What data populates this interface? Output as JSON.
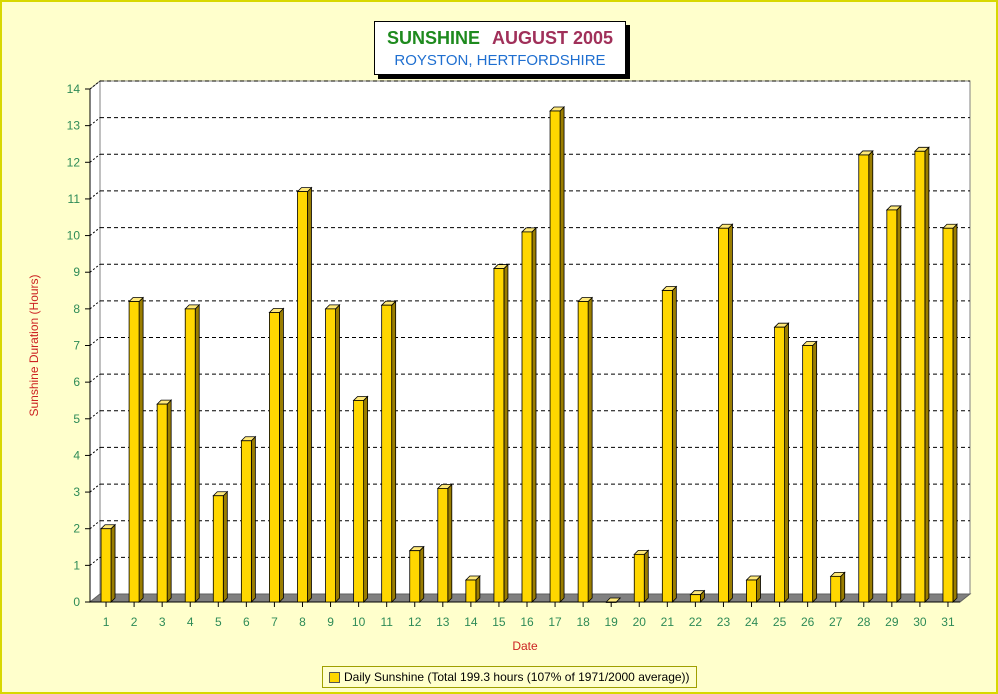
{
  "title": {
    "part1": "SUNSHINE",
    "part2": "AUGUST 2005",
    "subtitle": "ROYSTON, HERTFORDSHIRE"
  },
  "colors": {
    "bar": "#ffd700",
    "bar_side": "#9a7d00",
    "bar_top": "#ffe97a",
    "axis_text": "#2e8b57",
    "label_text": "#cc2222",
    "title_green": "#1e8a1e",
    "title_maroon": "#a0305a",
    "subtitle_blue": "#1f6fd0"
  },
  "legend": {
    "label": "Daily Sunshine (Total 199.3 hours (107% of 1971/2000 average))"
  },
  "chart_data": {
    "type": "bar",
    "xlabel": "Date",
    "ylabel": "Sunshine Duration (Hours)",
    "ylim": [
      0,
      14
    ],
    "yticks": [
      0,
      1,
      2,
      3,
      4,
      5,
      6,
      7,
      8,
      9,
      10,
      11,
      12,
      13,
      14
    ],
    "grid": true,
    "legend_position": "bottom",
    "categories": [
      "1",
      "2",
      "3",
      "4",
      "5",
      "6",
      "7",
      "8",
      "9",
      "10",
      "11",
      "12",
      "13",
      "14",
      "15",
      "16",
      "17",
      "18",
      "19",
      "20",
      "21",
      "22",
      "23",
      "24",
      "25",
      "26",
      "27",
      "28",
      "29",
      "30",
      "31"
    ],
    "series": [
      {
        "name": "Daily Sunshine (Total 199.3 hours (107% of 1971/2000 average))",
        "values": [
          2.0,
          8.2,
          5.4,
          8.0,
          2.9,
          4.4,
          7.9,
          11.2,
          8.0,
          5.5,
          8.1,
          1.4,
          3.1,
          0.6,
          9.1,
          10.1,
          13.4,
          8.2,
          0.0,
          1.3,
          8.5,
          0.2,
          10.2,
          0.6,
          7.5,
          7.0,
          0.7,
          12.2,
          10.7,
          12.3,
          10.2
        ]
      }
    ]
  }
}
